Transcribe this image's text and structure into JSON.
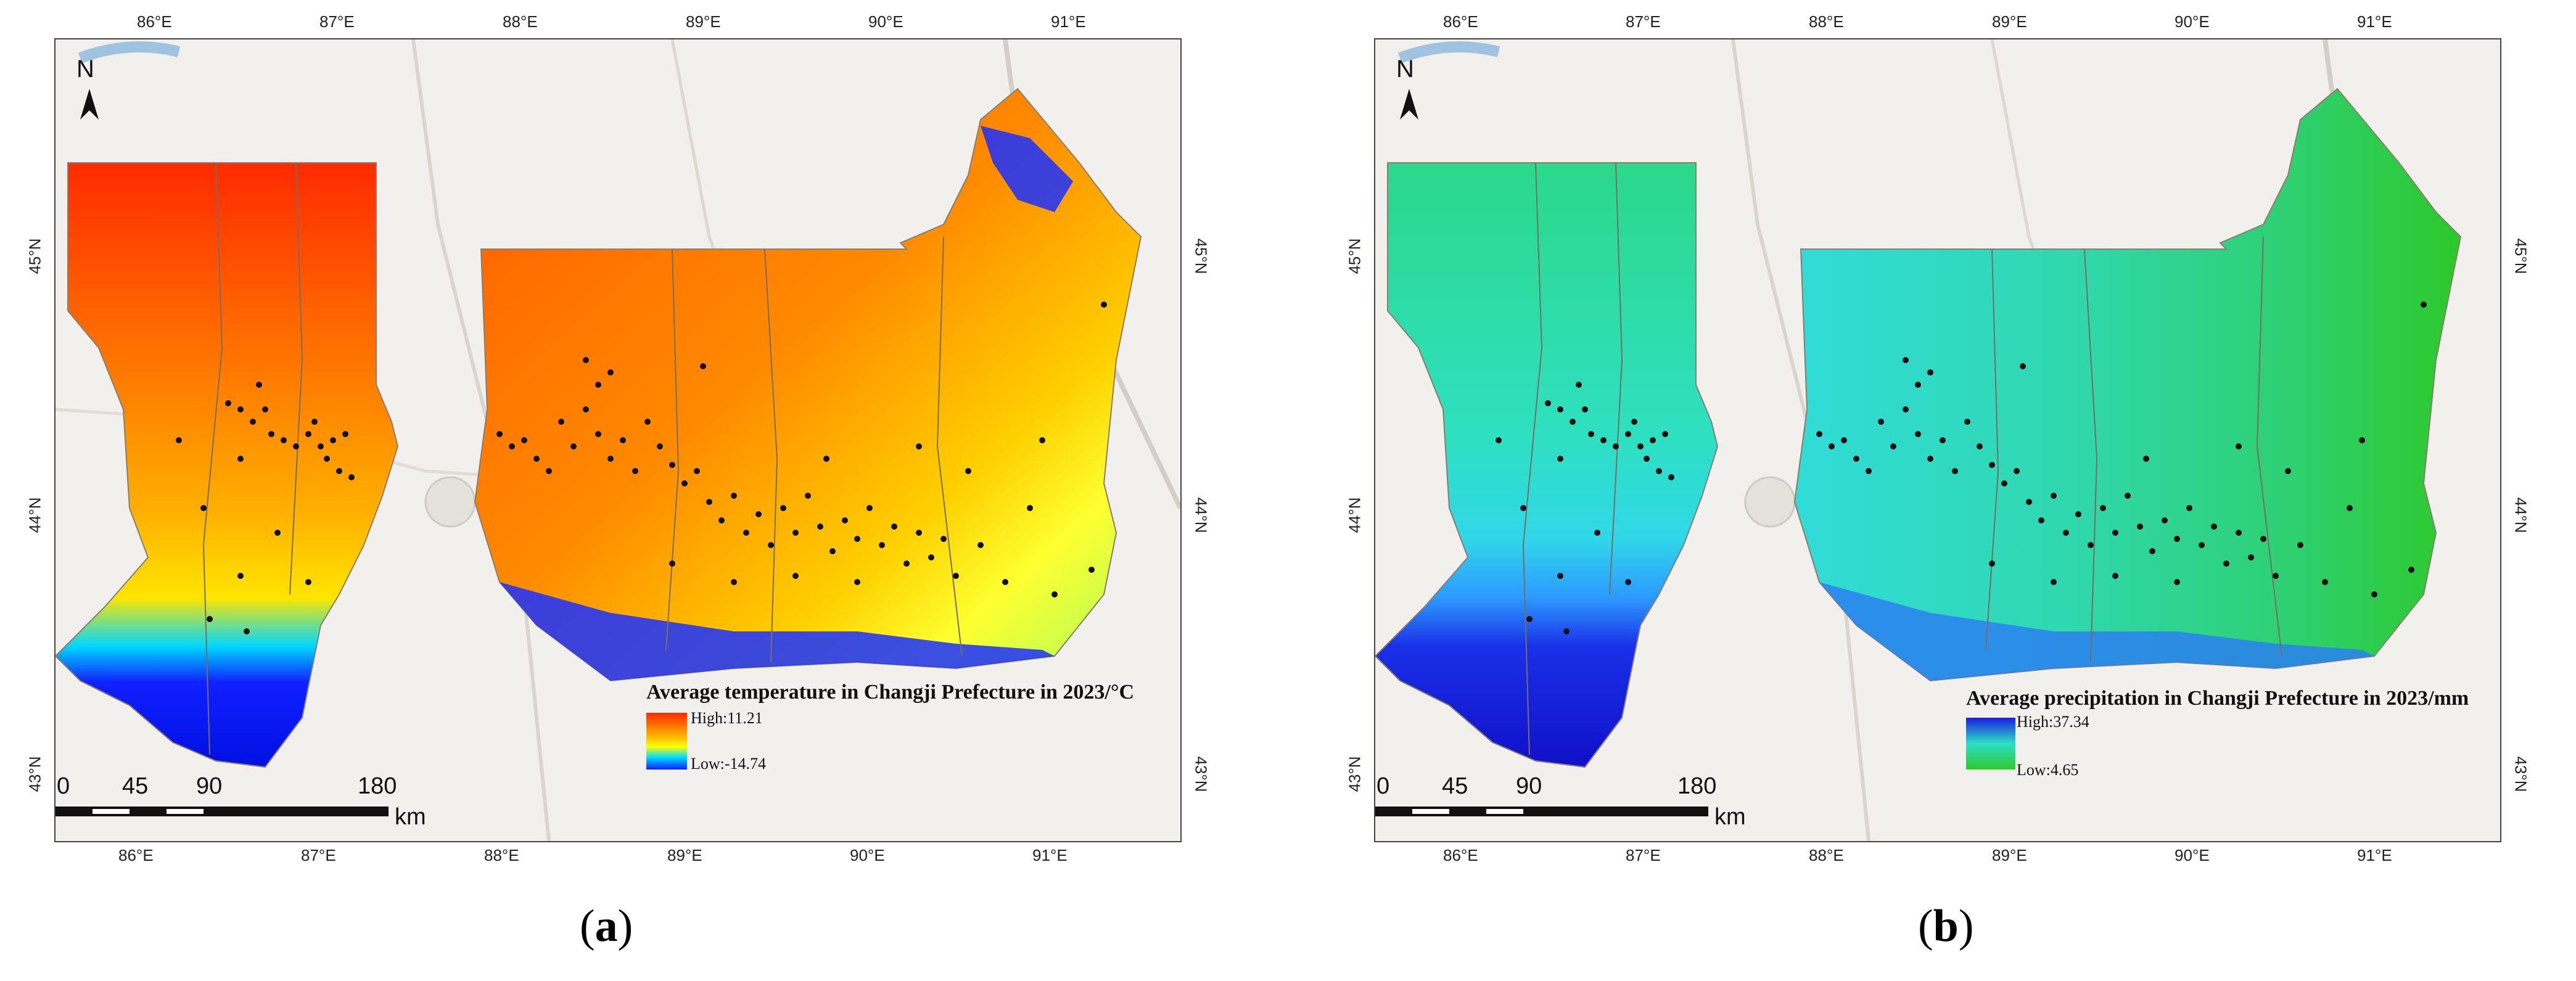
{
  "lon_ticks": [
    "86°E",
    "87°E",
    "88°E",
    "89°E",
    "90°E",
    "91°E"
  ],
  "lat_ticks": [
    "45°N",
    "44°N",
    "43°N"
  ],
  "north_label": "N",
  "scale": {
    "labels": [
      "0",
      "45",
      "90",
      "180"
    ],
    "unit": "km"
  },
  "panels": [
    {
      "caption_open": "(",
      "caption_letter": "a",
      "caption_close": ")",
      "legend_title": "Average temperature in Changji Prefecture in 2023/°C",
      "legend_high": "High:11.21",
      "legend_low": "Low:-14.74",
      "colors": {
        "high": "#ff2a00",
        "mid": "#ffe500",
        "low": "#1020ff"
      }
    },
    {
      "caption_open": "(",
      "caption_letter": "b",
      "caption_close": ")",
      "legend_title": "Average precipitation in Changji Prefecture in 2023/mm",
      "legend_high": "High:37.34",
      "legend_low": "Low:4.65",
      "colors": {
        "high": "#1a1fe0",
        "mid": "#2ce0c8",
        "low": "#2ec82a"
      }
    }
  ]
}
